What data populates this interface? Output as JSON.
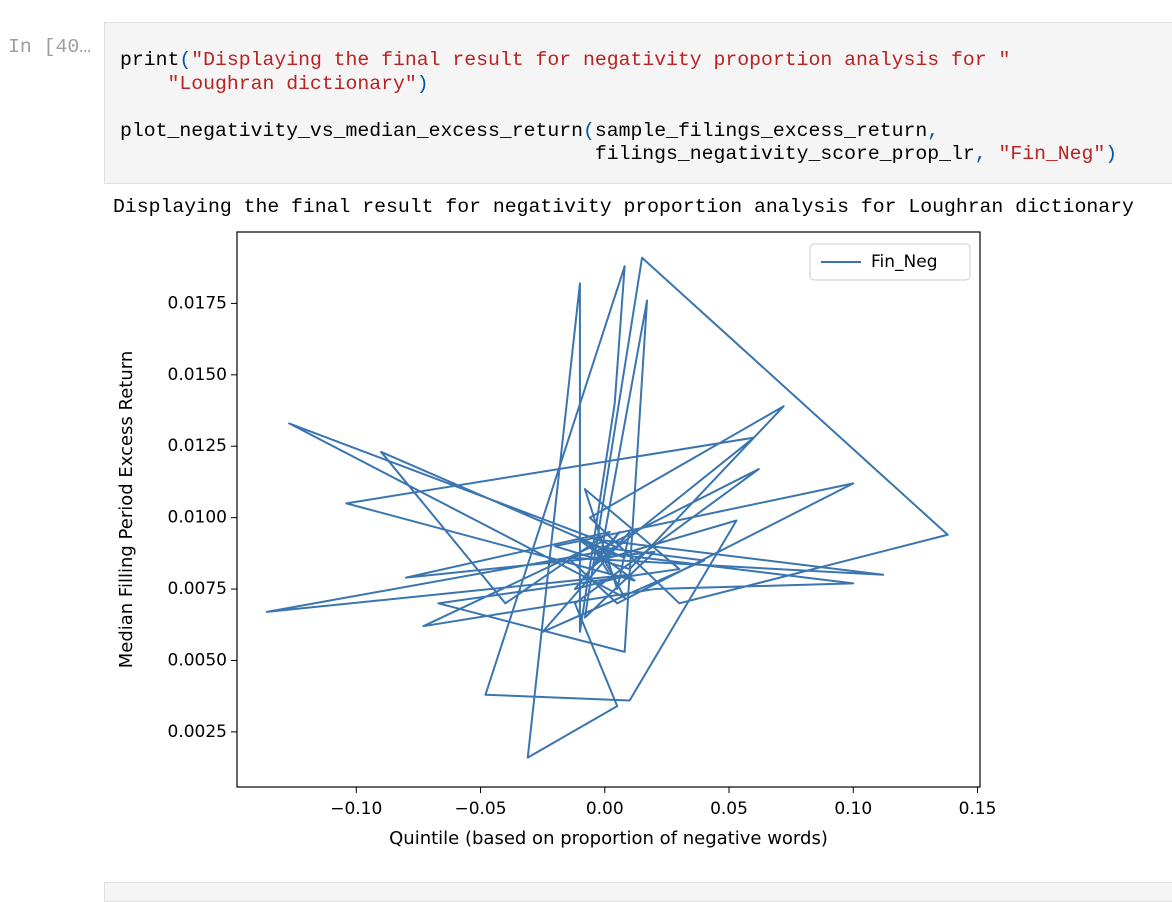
{
  "notebook": {
    "prompt": "In [40…",
    "code_lines": [
      "print(\"Displaying the final result for negativity proportion analysis for \"",
      "    \"Loughran dictionary\")",
      "",
      "plot_negativity_vs_median_excess_return(sample_filings_excess_return,",
      "                                        filings_negativity_score_prop_lr, \"Fin_Neg\")"
    ],
    "output_text": "Displaying the final result for negativity proportion analysis for Loughran dictionary"
  },
  "chart_data": {
    "type": "line",
    "x_label": "Quintile (based on proportion of negative words)",
    "y_label": "Median Filling Period Excess Return",
    "x": [
      -0.004,
      0.006,
      -0.012,
      0.01,
      -0.136,
      -0.002,
      0.008,
      -0.127,
      0.004,
      -0.006,
      0.06,
      -0.104,
      0.012,
      -0.01,
      0.008,
      -0.09,
      -0.04,
      0.002,
      -0.08,
      0.02,
      -0.008,
      0.015,
      0.138,
      0.03,
      -0.006,
      0.072,
      0.01,
      -0.02,
      0.1,
      0.005,
      -0.015,
      0.112,
      0.0,
      -0.073,
      0.02,
      0.1,
      -0.004,
      0.062,
      -0.012,
      0.005,
      -0.031,
      -0.01,
      -0.01,
      0.004,
      0.008,
      -0.048,
      0.01,
      0.053,
      -0.002,
      0.017,
      0.008,
      -0.067,
      0.03,
      -0.008,
      0.005,
      0.01,
      -0.025,
      0.04,
      -0.005,
      0.002
    ],
    "series": [
      {
        "name": "Fin_Neg",
        "color": "#3a75af",
        "values": [
          0.0085,
          0.0095,
          0.0075,
          0.008,
          0.0067,
          0.0088,
          0.0072,
          0.0133,
          0.009,
          0.0082,
          0.0128,
          0.0105,
          0.0078,
          0.0092,
          0.0086,
          0.0123,
          0.007,
          0.0095,
          0.0079,
          0.0088,
          0.0065,
          0.0191,
          0.0094,
          0.007,
          0.01,
          0.0139,
          0.0082,
          0.009,
          0.0112,
          0.007,
          0.0086,
          0.008,
          0.0092,
          0.0062,
          0.0075,
          0.0077,
          0.0088,
          0.0117,
          0.007,
          0.0034,
          0.0016,
          0.0182,
          0.006,
          0.014,
          0.0188,
          0.0038,
          0.0036,
          0.0099,
          0.0085,
          0.0176,
          0.0053,
          0.007,
          0.0082,
          0.011,
          0.0075,
          0.0095,
          0.006,
          0.0085,
          0.009,
          0.008
        ]
      }
    ],
    "xlim": [
      -0.148,
      0.151
    ],
    "ylim": [
      0.00057,
      0.02
    ],
    "xticks": [
      {
        "value": -0.1,
        "label": "−0.10"
      },
      {
        "value": -0.05,
        "label": "−0.05"
      },
      {
        "value": 0,
        "label": "0.00"
      },
      {
        "value": 0.05,
        "label": "0.05"
      },
      {
        "value": 0.1,
        "label": "0.10"
      },
      0.15
    ],
    "yticks": [
      0.0025,
      {
        "value": 0.005,
        "label": "0.0050"
      },
      0.0075,
      {
        "value": 0.01,
        "label": "0.0100"
      },
      0.0125,
      {
        "value": 0.015,
        "label": "0.0150"
      },
      0.0175
    ],
    "grid": false,
    "legend": "upper right"
  }
}
